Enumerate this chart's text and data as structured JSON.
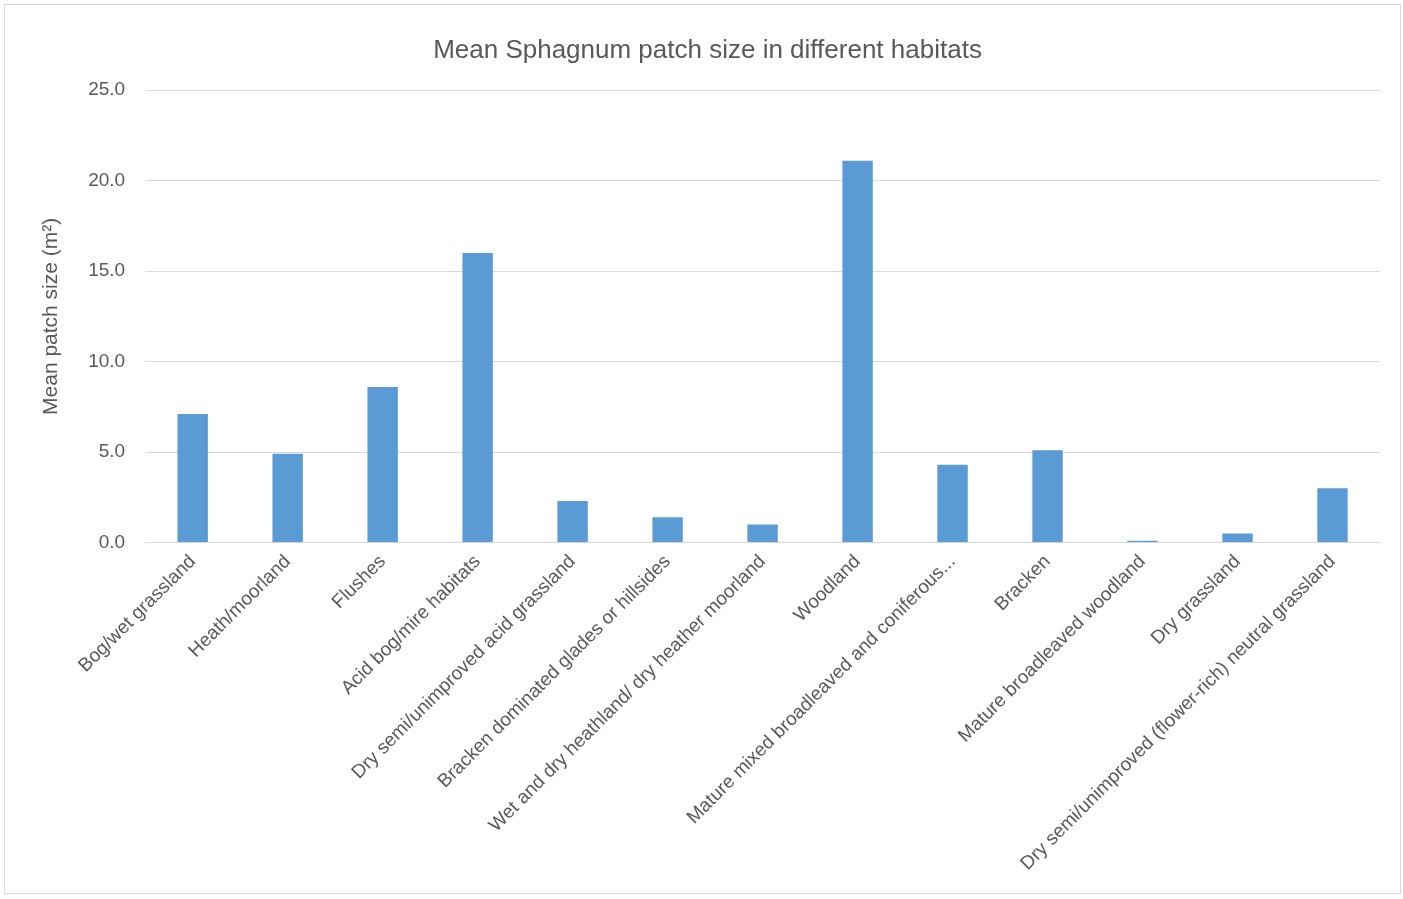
{
  "chart_data": {
    "type": "bar",
    "title": "Mean Sphagnum patch size in different habitats",
    "ylabel": "Mean patch size (m²)",
    "categories": [
      "Bog/wet grassland",
      "Heath/moorland",
      "Flushes",
      "Acid bog/mire habitats",
      "Dry semi/unimproved acid grassland",
      "Bracken dominated glades or hillsides",
      "Wet and dry heathland/ dry heather moorland",
      "Woodland",
      "Mature mixed broadleaved and coniferous...",
      "Bracken",
      "Mature broadleaved woodland",
      "Dry grassland",
      "Dry semi/unimproved (flower-rich) neutral grassland"
    ],
    "values": [
      7.1,
      4.9,
      8.6,
      16.0,
      2.3,
      1.4,
      1.0,
      21.1,
      4.3,
      5.1,
      0.1,
      0.5,
      3.0
    ],
    "color": "#5b9bd5",
    "ylim": [
      0,
      25
    ],
    "yticks": [
      {
        "value": 0,
        "label": "0.0"
      },
      {
        "value": 5,
        "label": "5.0"
      },
      {
        "value": 10,
        "label": "10.0"
      },
      {
        "value": 15,
        "label": "15.0"
      },
      {
        "value": 20,
        "label": "20.0"
      },
      {
        "value": 25,
        "label": "25.0"
      }
    ],
    "grid": "y"
  }
}
